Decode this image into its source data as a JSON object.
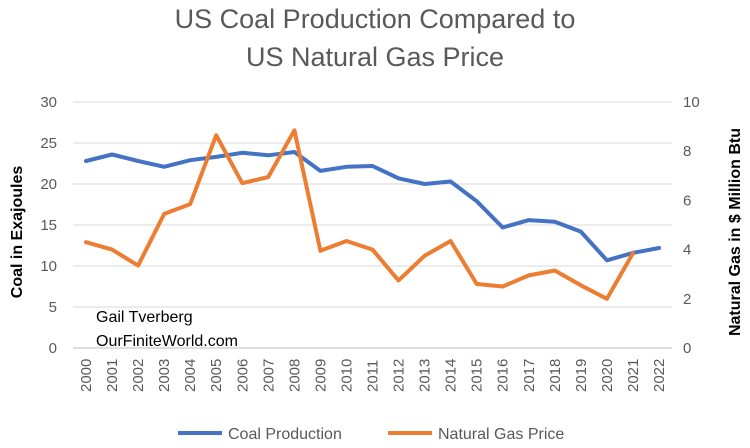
{
  "chart_data": {
    "type": "line",
    "title": [
      "US Coal Production Compared to",
      "US Natural Gas Price"
    ],
    "categories": [
      "2000",
      "2001",
      "2002",
      "2003",
      "2004",
      "2005",
      "2006",
      "2007",
      "2008",
      "2009",
      "2010",
      "2011",
      "2012",
      "2013",
      "2014",
      "2015",
      "2016",
      "2017",
      "2018",
      "2019",
      "2020",
      "2021",
      "2022"
    ],
    "y_left": {
      "label": "Coal in Exajoules",
      "ylim": [
        0,
        30
      ],
      "ticks": [
        "0",
        "5",
        "10",
        "15",
        "20",
        "25",
        "30"
      ]
    },
    "y_right": {
      "label": "Natural Gas in $ Million Btu",
      "ylim": [
        0,
        10
      ],
      "ticks": [
        "0",
        "2",
        "4",
        "6",
        "8",
        "10"
      ]
    },
    "series": [
      {
        "name": "Coal Production",
        "axis": "left",
        "color": "#4472C4",
        "values": [
          22.8,
          23.6,
          22.8,
          22.1,
          22.9,
          23.3,
          23.8,
          23.5,
          23.9,
          21.6,
          22.1,
          22.2,
          20.7,
          20.0,
          20.3,
          17.9,
          14.7,
          15.6,
          15.4,
          14.2,
          10.7,
          11.6,
          12.2
        ]
      },
      {
        "name": "Natural Gas Price",
        "axis": "right",
        "color": "#ED7D31",
        "values": [
          4.3,
          4.0,
          3.35,
          5.45,
          5.85,
          8.65,
          6.7,
          6.95,
          8.85,
          3.95,
          4.35,
          4.0,
          2.75,
          3.75,
          4.35,
          2.6,
          2.5,
          2.95,
          3.15,
          2.55,
          2.0,
          3.85,
          null
        ]
      }
    ],
    "annotations": [
      "Gail Tverberg",
      "OurFiniteWorld.com"
    ],
    "legend_position": "bottom"
  }
}
